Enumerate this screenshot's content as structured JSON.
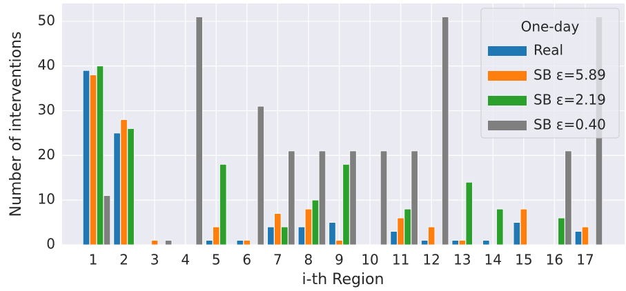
{
  "chart_data": {
    "type": "bar",
    "x_label": "i-th Region",
    "y_label": "Number of interventions",
    "categories": [
      "1",
      "2",
      "3",
      "4",
      "5",
      "6",
      "7",
      "8",
      "9",
      "10",
      "11",
      "12",
      "13",
      "14",
      "15",
      "16",
      "17"
    ],
    "series": [
      {
        "name": "Real",
        "color": "#1f77b4",
        "values": [
          39,
          25,
          0,
          0,
          1,
          1,
          4,
          4,
          5,
          0,
          3,
          1,
          1,
          1,
          5,
          0,
          3
        ]
      },
      {
        "name": "SB ε=5.89",
        "color": "#ff7f0e",
        "values": [
          38,
          28,
          1,
          0,
          4,
          1,
          7,
          8,
          1,
          0,
          6,
          4,
          1,
          0,
          8,
          0,
          4
        ]
      },
      {
        "name": "SB ε=2.19",
        "color": "#2ca02c",
        "values": [
          40,
          26,
          0,
          0,
          18,
          0,
          4,
          10,
          18,
          0,
          8,
          0,
          14,
          8,
          0,
          6,
          0
        ]
      },
      {
        "name": "SB ε=0.40",
        "color": "#7f7f7f",
        "values": [
          11,
          0,
          1,
          51,
          0,
          31,
          21,
          21,
          21,
          21,
          21,
          51,
          0,
          0,
          0,
          21,
          51
        ]
      }
    ],
    "ylim": [
      0,
      54
    ],
    "yticks": [
      0,
      10,
      20,
      30,
      40,
      50
    ],
    "grid": true,
    "legend_title": "One-day",
    "legend_position": "upper right"
  }
}
